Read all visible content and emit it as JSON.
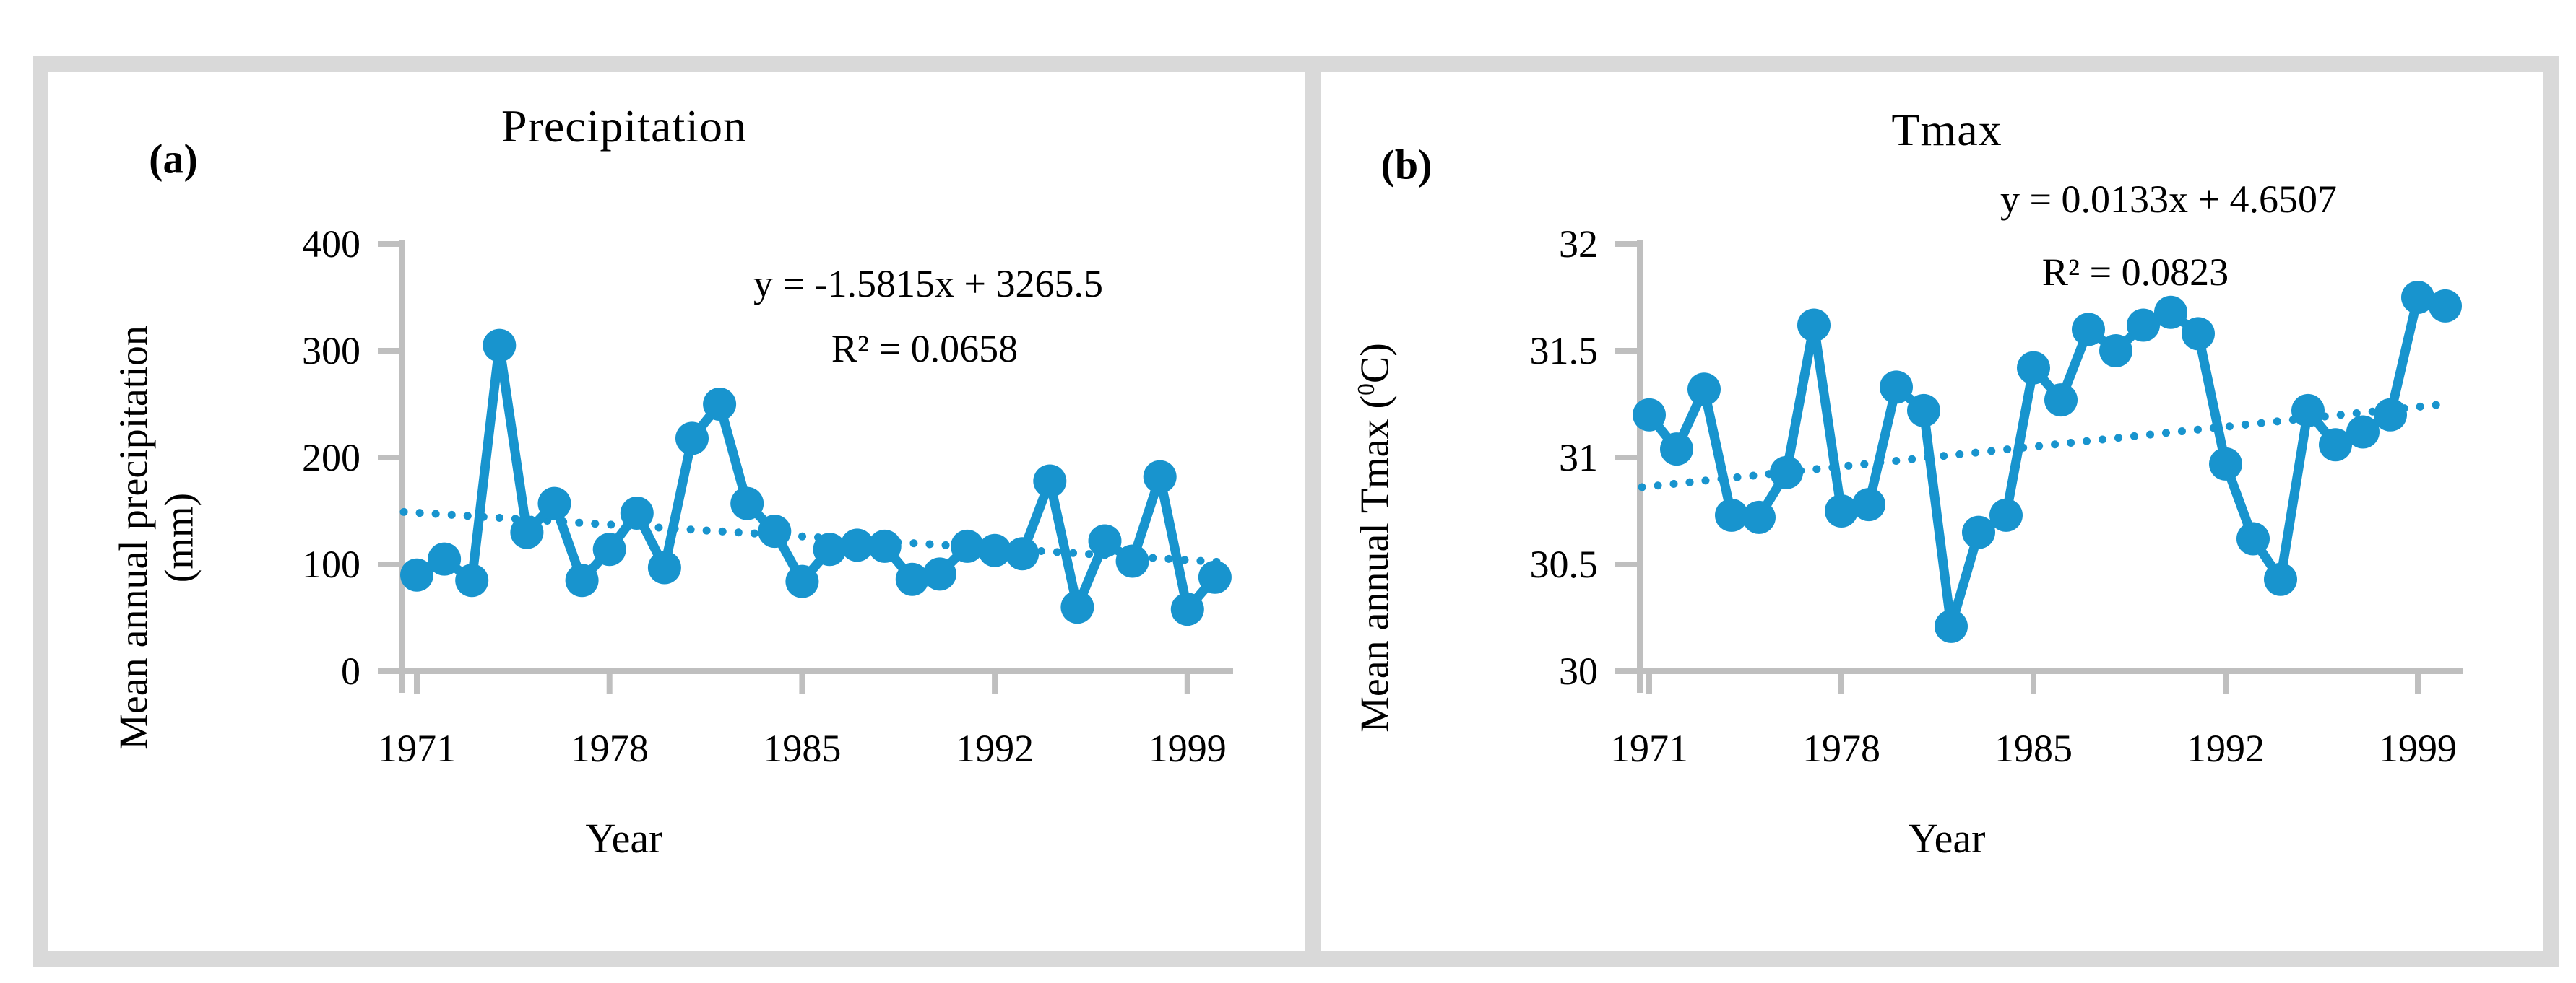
{
  "figure": {
    "panels": [
      {
        "label": "(a)",
        "title": "Precipitation",
        "equation": "y = -1.5815x + 3265.5",
        "r_squared": "R² = 0.0658",
        "y_axis_title_line1": "Mean annual precipitation",
        "y_axis_title_line2": "(mm)",
        "x_axis_title": "Year"
      },
      {
        "label": "(b)",
        "title": "Tmax",
        "equation": "y = 0.0133x + 4.6507",
        "r_squared": "R² = 0.0823",
        "y_axis_title_pre": "Mean annual  Tmax (",
        "y_axis_title_sup": "0",
        "y_axis_title_post": "C)",
        "x_axis_title": "Year"
      }
    ],
    "colors": {
      "series_blue": "#1894CE",
      "axis_gray": "#BFBFBF",
      "frame_gray": "#D9D9D9",
      "text_black": "#000000"
    }
  },
  "chart_data": [
    {
      "type": "line",
      "title": "Precipitation",
      "xlabel": "Year",
      "ylabel": "Mean annual precipitation (mm)",
      "x": [
        1971,
        1972,
        1973,
        1974,
        1975,
        1976,
        1977,
        1978,
        1979,
        1980,
        1981,
        1982,
        1983,
        1984,
        1985,
        1986,
        1987,
        1988,
        1989,
        1990,
        1991,
        1992,
        1993,
        1994,
        1995,
        1996,
        1997,
        1998,
        1999,
        2000
      ],
      "values": [
        90,
        105,
        85,
        305,
        130,
        157,
        85,
        114,
        148,
        97,
        218,
        250,
        157,
        131,
        84,
        114,
        118,
        117,
        86,
        91,
        117,
        113,
        110,
        178,
        60,
        122,
        103,
        182,
        58,
        88
      ],
      "ylim": [
        0,
        400
      ],
      "yticks": [
        0,
        100,
        200,
        300,
        400
      ],
      "xticks": [
        1971,
        1978,
        1985,
        1992,
        1999
      ],
      "trend": {
        "slope": -1.5815,
        "intercept": 3265.5,
        "equation": "y = -1.5815x + 3265.5",
        "r2": 0.0658,
        "style": "dotted"
      },
      "grid": false,
      "legend": "none",
      "marker": "circle"
    },
    {
      "type": "line",
      "title": "Tmax",
      "xlabel": "Year",
      "ylabel": "Mean annual Tmax (0C)",
      "x": [
        1971,
        1972,
        1973,
        1974,
        1975,
        1976,
        1977,
        1978,
        1979,
        1980,
        1981,
        1982,
        1983,
        1984,
        1985,
        1986,
        1987,
        1988,
        1989,
        1990,
        1991,
        1992,
        1993,
        1994,
        1995,
        1996,
        1997,
        1998,
        1999,
        2000
      ],
      "values": [
        31.2,
        31.04,
        31.32,
        30.73,
        30.72,
        30.93,
        31.62,
        30.75,
        30.78,
        31.33,
        31.22,
        30.21,
        30.65,
        30.73,
        31.42,
        31.27,
        31.6,
        31.5,
        31.62,
        31.68,
        31.58,
        30.97,
        30.62,
        30.43,
        31.22,
        31.06,
        31.12,
        31.2,
        31.75,
        31.71
      ],
      "ylim": [
        30,
        32
      ],
      "yticks": [
        30,
        30.5,
        31,
        31.5,
        32
      ],
      "xticks": [
        1971,
        1978,
        1985,
        1992,
        1999
      ],
      "trend": {
        "slope": 0.0133,
        "intercept": 4.6507,
        "equation": "y = 0.0133x + 4.6507",
        "r2": 0.0823,
        "style": "dotted"
      },
      "grid": false,
      "legend": "none",
      "marker": "circle"
    }
  ]
}
